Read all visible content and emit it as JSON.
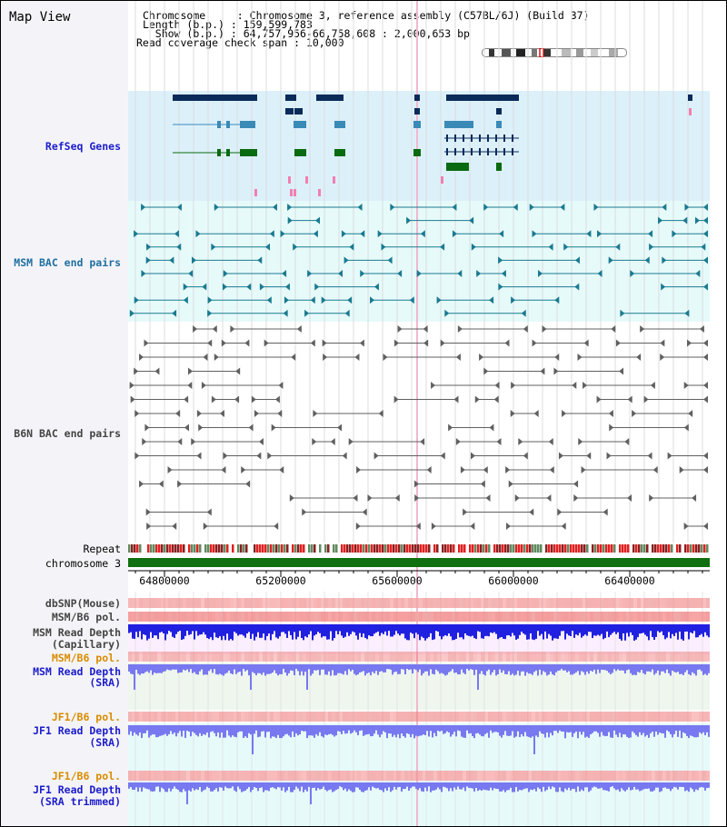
{
  "title": "Map View",
  "info": {
    "chromosome_label": "Chromosome",
    "chromosome_value": "Chromosome 3, reference assembly (C57BL/6J) (Build 37)",
    "length_label": "Length (b.p.)",
    "length_value": "159,599,783",
    "show_label": "Show (b.p.)",
    "show_value": "64,757,956-66,758,608 : 2,000,653 bp",
    "coverage_label": "Read coverage check span",
    "coverage_value": "10,000"
  },
  "track_labels": {
    "refseq": "RefSeq Genes",
    "msm_bac": "MSM BAC end pairs",
    "b6n_bac": "B6N BAC end pairs",
    "repeat": "Repeat",
    "chromosome": "chromosome 3",
    "dbsnp": "dbSNP(Mouse)",
    "msm_b6_pol_1": "MSM/B6 pol.",
    "msm_read_depth_cap_1": "MSM Read Depth",
    "msm_read_depth_cap_2": "(Capillary)",
    "msm_b6_pol_2": "MSM/B6 pol.",
    "msm_read_depth_sra_1": "MSM Read Depth",
    "msm_read_depth_sra_2": "(SRA)",
    "jf1_b6_pol_1": "JF1/B6 pol.",
    "jf1_read_depth_sra_1": "JF1 Read Depth",
    "jf1_read_depth_sra_2": "(SRA)",
    "jf1_b6_pol_2": "JF1/B6 pol.",
    "jf1_read_depth_trim_1": "JF1 Read Depth",
    "jf1_read_depth_trim_2": "(SRA trimmed)"
  },
  "axis_ticks": [
    "64800000",
    "65200000",
    "65600000",
    "66000000",
    "66400000"
  ],
  "colors": {
    "refseq_bg": "#dcf0fa",
    "bac_bg": "#e6fafa",
    "gene_dark": "#0a2a5a",
    "gene_mid": "#3a8ab8",
    "gene_green": "#0a6a10",
    "chrom_green": "#107010",
    "depth_blue": "#2020e0",
    "depth_light_blue": "#7878f0",
    "pol_red": "#f06060"
  }
}
